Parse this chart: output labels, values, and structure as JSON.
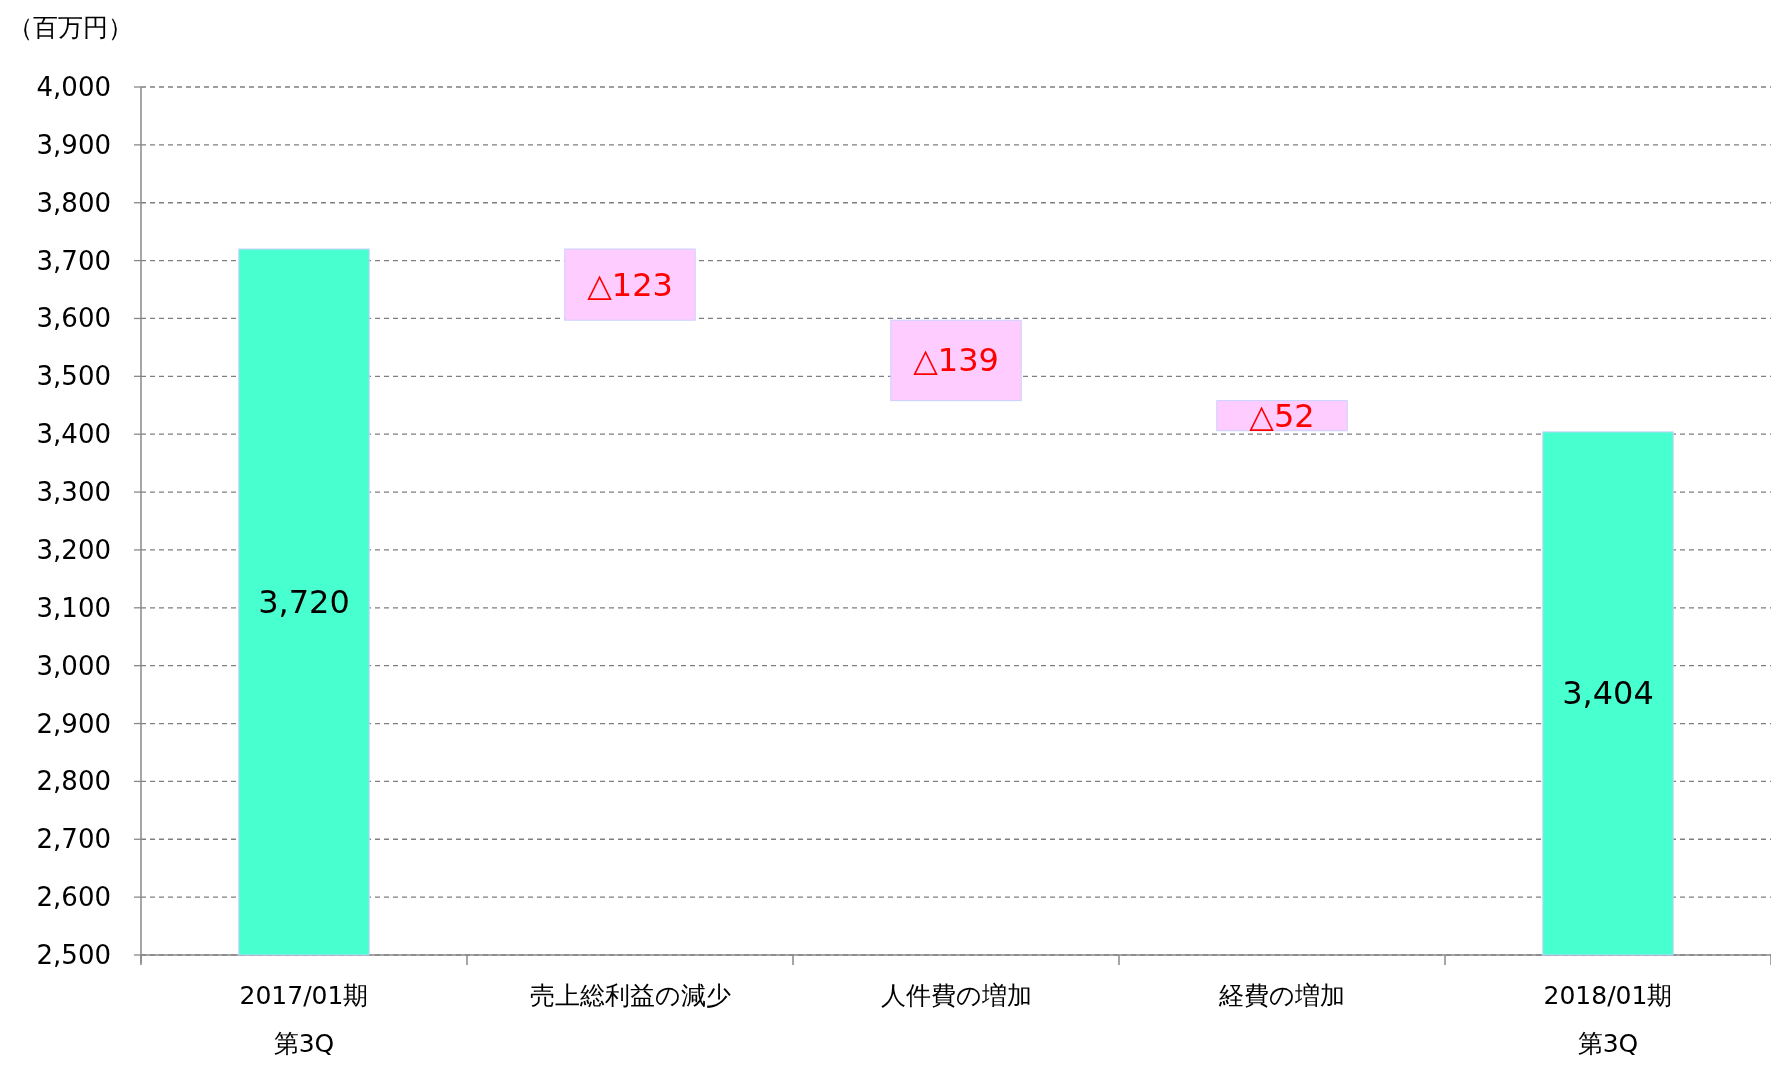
{
  "chart_data": {
    "type": "bar",
    "ylabel": "（百万円）",
    "categories": [
      "2017/01期第3Q",
      "売上総利益の減少",
      "人件費の増加",
      "経費の増加",
      "2018/01期第3Q"
    ],
    "values": [
      3720,
      -123,
      -139,
      -52,
      3404
    ],
    "base": [
      null,
      3720,
      3597,
      3458,
      null
    ],
    "colors": [
      "#47ffcf",
      "#ffccff",
      "#ffccff",
      "#ffccff",
      "#47ffcf"
    ],
    "value_labels": [
      "3,720",
      "△123",
      "△139",
      "△52",
      "3,404"
    ],
    "ylim": [
      2500,
      4000
    ],
    "yticks": [
      {
        "value": 2500,
        "label": "2,500"
      },
      {
        "value": 2600,
        "label": "2,600"
      },
      {
        "value": 2700,
        "label": "2,700"
      },
      {
        "value": 2800,
        "label": "2,800"
      },
      {
        "value": 2900,
        "label": "2,900"
      },
      {
        "value": 3000,
        "label": "3,000"
      },
      {
        "value": 3100,
        "label": "3,100"
      },
      {
        "value": 3200,
        "label": "3,200"
      },
      {
        "value": 3300,
        "label": "3,300"
      },
      {
        "value": 3400,
        "label": "3,400"
      },
      {
        "value": 3500,
        "label": "3,500"
      },
      {
        "value": 3600,
        "label": "3,600"
      },
      {
        "value": 3700,
        "label": "3,700"
      },
      {
        "value": 3800,
        "label": "3,800"
      },
      {
        "value": 3900,
        "label": "3,900"
      },
      {
        "value": 4000,
        "label": "4,000"
      }
    ],
    "grid": "y"
  }
}
